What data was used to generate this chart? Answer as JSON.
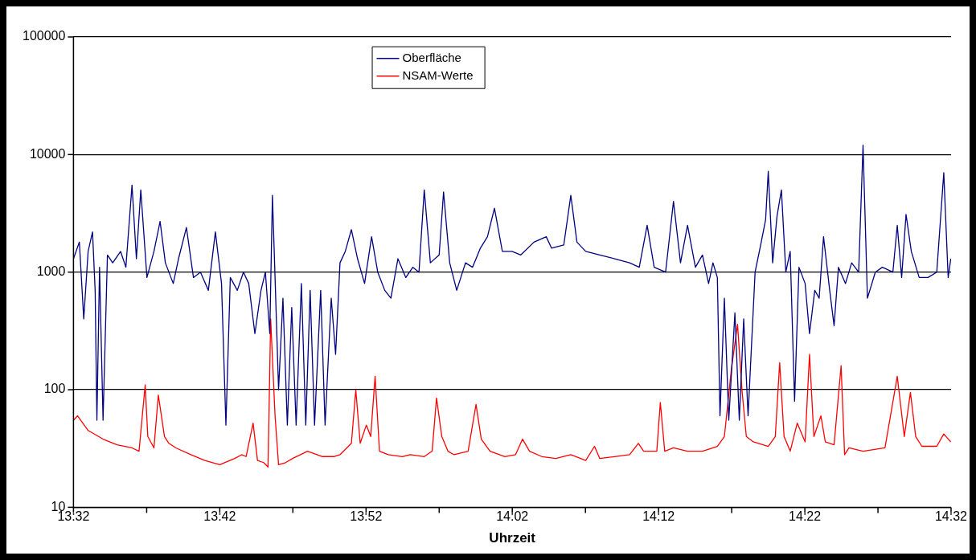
{
  "chart_data": {
    "type": "line",
    "xlabel": "Uhrzeit",
    "log": "y",
    "grid": "y",
    "legend": "top",
    "marker": "none",
    "line_style": "solid",
    "xlim": [
      13.5333,
      14.5333
    ],
    "xticks": [
      {
        "value": 13.5333,
        "label": "13:32"
      },
      {
        "value": 13.6167,
        "label": null
      },
      {
        "value": 13.7,
        "label": "13:42"
      },
      {
        "value": 13.7833,
        "label": null
      },
      {
        "value": 13.8667,
        "label": "13:52"
      },
      {
        "value": 13.95,
        "label": null
      },
      {
        "value": 14.0333,
        "label": "14:02"
      },
      {
        "value": 14.1167,
        "label": null
      },
      {
        "value": 14.2,
        "label": "14:12"
      },
      {
        "value": 14.2833,
        "label": null
      },
      {
        "value": 14.3667,
        "label": "14:22"
      },
      {
        "value": 14.45,
        "label": null
      },
      {
        "value": 14.5333,
        "label": "14:32"
      }
    ],
    "ylim": [
      10,
      100000
    ],
    "yticks": [
      10,
      100,
      1000,
      10000,
      100000
    ],
    "series": [
      {
        "name": "Oberfläche",
        "color": "#000080",
        "x": [
          13.5333,
          13.54,
          13.545,
          13.55,
          13.555,
          13.558,
          13.56,
          13.563,
          13.567,
          13.572,
          13.578,
          13.587,
          13.593,
          13.6,
          13.605,
          13.61,
          13.617,
          13.625,
          13.632,
          13.638,
          13.647,
          13.653,
          13.662,
          13.67,
          13.678,
          13.687,
          13.695,
          13.702,
          13.707,
          13.712,
          13.72,
          13.727,
          13.733,
          13.74,
          13.747,
          13.752,
          13.757,
          13.76,
          13.763,
          13.767,
          13.772,
          13.777,
          13.782,
          13.787,
          13.793,
          13.798,
          13.803,
          13.808,
          13.815,
          13.82,
          13.827,
          13.832,
          13.837,
          13.843,
          13.85,
          13.857,
          13.865,
          13.873,
          13.88,
          13.888,
          13.895,
          13.903,
          13.912,
          13.92,
          13.927,
          13.933,
          13.94,
          13.95,
          13.955,
          13.962,
          13.97,
          13.98,
          13.988,
          13.997,
          14.005,
          14.013,
          14.022,
          14.033,
          14.043,
          14.058,
          14.072,
          14.078,
          14.092,
          14.1,
          14.107,
          14.117,
          14.133,
          14.15,
          14.167,
          14.178,
          14.187,
          14.195,
          14.208,
          14.217,
          14.225,
          14.233,
          14.242,
          14.25,
          14.257,
          14.262,
          14.267,
          14.27,
          14.275,
          14.28,
          14.287,
          14.292,
          14.297,
          14.302,
          14.31,
          14.317,
          14.322,
          14.325,
          14.33,
          14.335,
          14.34,
          14.345,
          14.35,
          14.355,
          14.36,
          14.367,
          14.372,
          14.378,
          14.383,
          14.388,
          14.395,
          14.4,
          14.405,
          14.413,
          14.42,
          14.428,
          14.433,
          14.438,
          14.447,
          14.455,
          14.467,
          14.472,
          14.477,
          14.482,
          14.488,
          14.497,
          14.507,
          14.517,
          14.525,
          14.53,
          14.533
        ],
        "values": [
          1300,
          1800,
          400,
          1500,
          2200,
          700,
          55,
          1100,
          55,
          1400,
          1200,
          1500,
          1100,
          5500,
          1300,
          5000,
          900,
          1500,
          2700,
          1200,
          800,
          1300,
          2400,
          900,
          1000,
          700,
          2200,
          800,
          50,
          900,
          700,
          1000,
          800,
          300,
          700,
          1000,
          300,
          4500,
          900,
          100,
          600,
          50,
          500,
          50,
          800,
          50,
          700,
          50,
          700,
          50,
          600,
          200,
          1200,
          1500,
          2300,
          1300,
          800,
          2000,
          1000,
          700,
          600,
          1300,
          900,
          1100,
          1000,
          5000,
          1200,
          1400,
          4800,
          1200,
          700,
          1200,
          1100,
          1600,
          2000,
          3500,
          1500,
          1500,
          1400,
          1800,
          2000,
          1600,
          1700,
          4500,
          1800,
          1500,
          1400,
          1300,
          1200,
          1100,
          2500,
          1100,
          1000,
          4000,
          1200,
          2500,
          1100,
          1400,
          800,
          1200,
          900,
          60,
          600,
          55,
          450,
          55,
          400,
          60,
          1000,
          1800,
          2800,
          7200,
          1200,
          3000,
          5000,
          1000,
          1500,
          80,
          1100,
          800,
          300,
          700,
          600,
          2000,
          700,
          350,
          1100,
          800,
          1200,
          1000,
          12000,
          600,
          1000,
          1100,
          1000,
          2500,
          900,
          3100,
          1500,
          900,
          900,
          1000,
          7000,
          900,
          1300
        ]
      },
      {
        "name": "NSAM-Werte",
        "color": "#ff0000",
        "x": [
          13.5333,
          13.538,
          13.55,
          13.567,
          13.583,
          13.6,
          13.608,
          13.615,
          13.618,
          13.625,
          13.63,
          13.637,
          13.642,
          13.65,
          13.667,
          13.683,
          13.7,
          13.717,
          13.725,
          13.73,
          13.738,
          13.743,
          13.75,
          13.755,
          13.758,
          13.763,
          13.767,
          13.775,
          13.783,
          13.792,
          13.8,
          13.817,
          13.83,
          13.837,
          13.85,
          13.855,
          13.86,
          13.867,
          13.872,
          13.877,
          13.882,
          13.892,
          13.908,
          13.917,
          13.933,
          13.942,
          13.947,
          13.953,
          13.96,
          13.967,
          13.983,
          13.992,
          13.998,
          14.008,
          14.025,
          14.037,
          14.045,
          14.053,
          14.067,
          14.083,
          14.1,
          14.117,
          14.127,
          14.133,
          14.15,
          14.167,
          14.177,
          14.183,
          14.198,
          14.202,
          14.207,
          14.217,
          14.233,
          14.25,
          14.267,
          14.275,
          14.283,
          14.29,
          14.295,
          14.3,
          14.308,
          14.325,
          14.333,
          14.338,
          14.343,
          14.35,
          14.358,
          14.367,
          14.372,
          14.377,
          14.385,
          14.39,
          14.4,
          14.408,
          14.412,
          14.417,
          14.433,
          14.458,
          14.472,
          14.48,
          14.487,
          14.493,
          14.5,
          14.517,
          14.525,
          14.533
        ],
        "values": [
          55,
          60,
          45,
          38,
          34,
          32,
          30,
          110,
          40,
          32,
          90,
          40,
          35,
          32,
          28,
          25,
          23,
          26,
          28,
          27,
          52,
          25,
          24,
          22,
          400,
          60,
          23,
          24,
          26,
          28,
          30,
          27,
          27,
          28,
          35,
          100,
          35,
          50,
          40,
          130,
          30,
          28,
          27,
          28,
          27,
          30,
          85,
          40,
          30,
          28,
          30,
          75,
          38,
          30,
          27,
          28,
          38,
          30,
          27,
          26,
          28,
          25,
          33,
          26,
          27,
          28,
          35,
          30,
          30,
          78,
          30,
          32,
          30,
          30,
          33,
          40,
          150,
          360,
          100,
          40,
          36,
          33,
          40,
          170,
          40,
          30,
          52,
          36,
          200,
          40,
          60,
          36,
          34,
          160,
          28,
          32,
          30,
          32,
          130,
          40,
          95,
          40,
          33,
          33,
          42,
          36
        ]
      }
    ]
  }
}
